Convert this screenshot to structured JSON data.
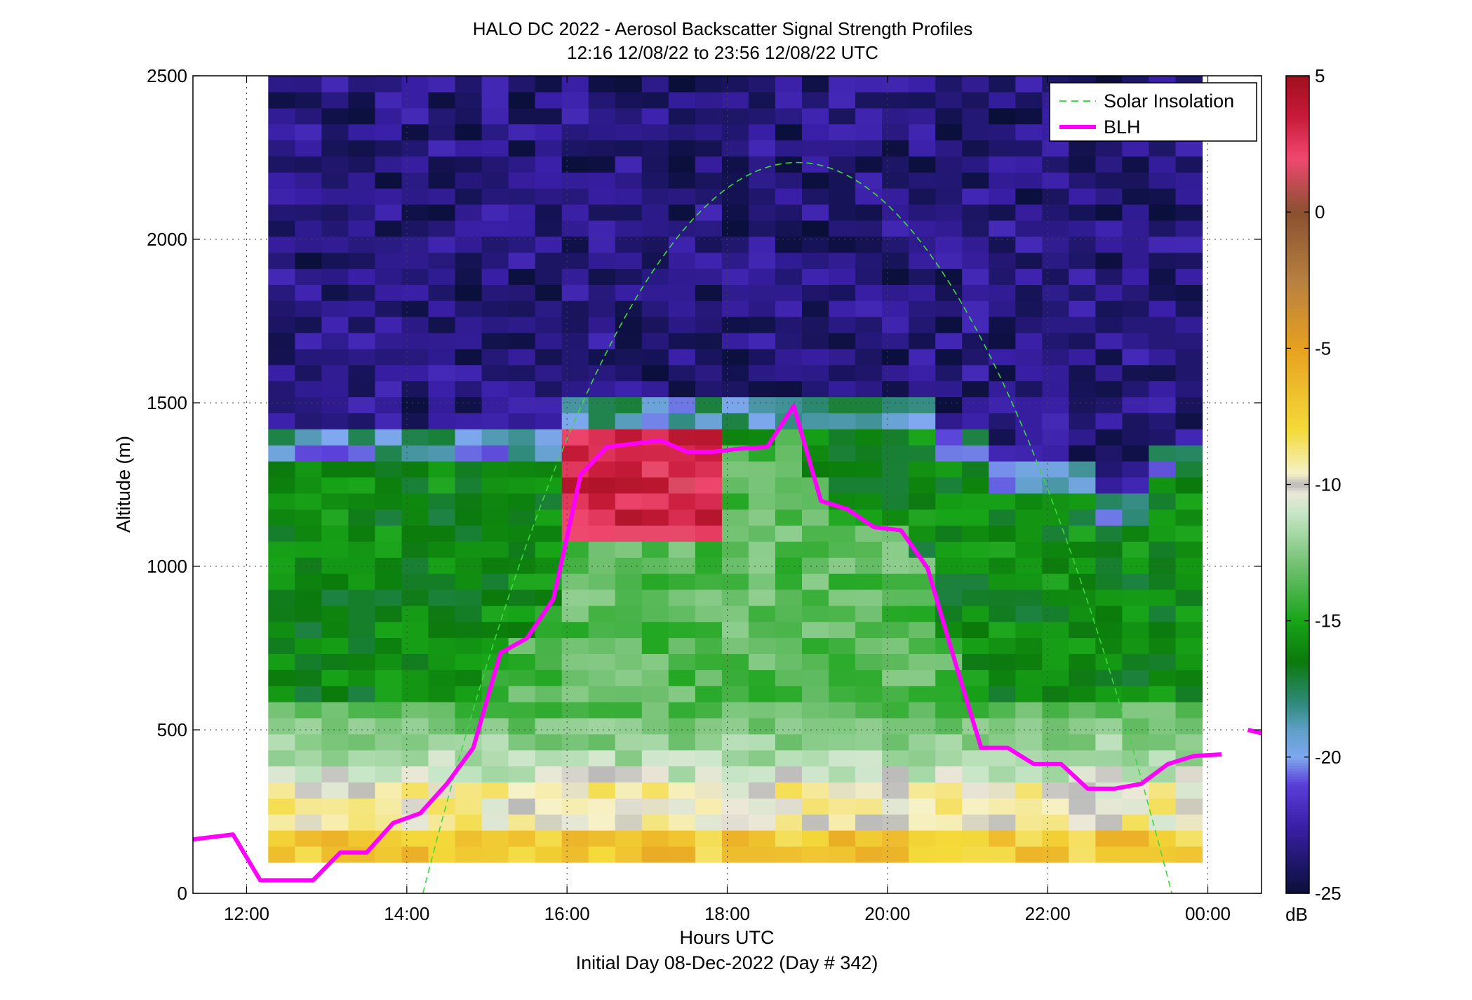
{
  "chart_data": {
    "type": "heatmap",
    "title": "HALO DC 2022 - Aerosol Backscatter Signal Strength Profiles",
    "subtitle": "12:16 12/08/22 to 23:56 12/08/22  UTC",
    "xlabel": "Hours UTC",
    "xlabel2": "Initial Day 08-Dec-2022 (Day # 342)",
    "ylabel": "Altitude (m)",
    "x_unit": "hours UTC (day 0 = 08-Dec-2022)",
    "xlim": [
      11.33,
      24.67
    ],
    "ylim": [
      0,
      2500
    ],
    "x_ticks": [
      {
        "value": 12,
        "label": "12:00"
      },
      {
        "value": 14,
        "label": "14:00"
      },
      {
        "value": 16,
        "label": "16:00"
      },
      {
        "value": 18,
        "label": "18:00"
      },
      {
        "value": 20,
        "label": "20:00"
      },
      {
        "value": 22,
        "label": "22:00"
      },
      {
        "value": 24,
        "label": "00:00"
      }
    ],
    "y_ticks": [
      0,
      500,
      1000,
      1500,
      2000,
      2500
    ],
    "grid": true,
    "legend_position": "top-right",
    "colorbar": {
      "unit": "dB",
      "range": [
        -25,
        5
      ],
      "ticks": [
        5,
        0,
        -5,
        -10,
        -15,
        -20,
        -25
      ],
      "stops": [
        {
          "v": -25,
          "c": "#0a0f3a"
        },
        {
          "v": -22.5,
          "c": "#3a1fa8"
        },
        {
          "v": -21,
          "c": "#5a3fd8"
        },
        {
          "v": -20,
          "c": "#7fa8f0"
        },
        {
          "v": -19,
          "c": "#5fa0c8"
        },
        {
          "v": -18,
          "c": "#2f8a7a"
        },
        {
          "v": -16.5,
          "c": "#0b7a0b"
        },
        {
          "v": -15,
          "c": "#18a418"
        },
        {
          "v": -13,
          "c": "#6fc06f"
        },
        {
          "v": -11,
          "c": "#c8e6c8"
        },
        {
          "v": -10.3,
          "c": "#ece8d8"
        },
        {
          "v": -10,
          "c": "#b8b8b8"
        },
        {
          "v": -9.6,
          "c": "#f6f1c8"
        },
        {
          "v": -8,
          "c": "#f4da3a"
        },
        {
          "v": -5,
          "c": "#e8a020"
        },
        {
          "v": -2.5,
          "c": "#b88040"
        },
        {
          "v": 0,
          "c": "#8a5030"
        },
        {
          "v": 2,
          "c": "#f04870"
        },
        {
          "v": 3.5,
          "c": "#c81a3a"
        },
        {
          "v": 5,
          "c": "#a0101e"
        }
      ]
    },
    "profiles": {
      "x_start": 12.27,
      "x_end": 23.93,
      "alt_start": 95,
      "alt_end": 2500
    },
    "series": [
      {
        "name": "Solar Insolation",
        "style": "dashed",
        "color": "#40d840",
        "peak_time": 18.88,
        "peak_alt": 2235,
        "zero_times": [
          14.2,
          23.55
        ]
      },
      {
        "name": "BLH",
        "style": "solid",
        "color": "#ff00ff",
        "points": [
          [
            11.33,
            165
          ],
          [
            11.83,
            180
          ],
          [
            12.17,
            40
          ],
          [
            12.83,
            40
          ],
          [
            13.17,
            125
          ],
          [
            13.5,
            125
          ],
          [
            13.83,
            215
          ],
          [
            14.17,
            245
          ],
          [
            14.5,
            335
          ],
          [
            14.83,
            445
          ],
          [
            15.17,
            735
          ],
          [
            15.5,
            780
          ],
          [
            15.83,
            900
          ],
          [
            16.17,
            1280
          ],
          [
            16.5,
            1365
          ],
          [
            16.83,
            1375
          ],
          [
            17.17,
            1385
          ],
          [
            17.5,
            1350
          ],
          [
            17.83,
            1350
          ],
          [
            18.17,
            1360
          ],
          [
            18.5,
            1365
          ],
          [
            18.83,
            1490
          ],
          [
            19.17,
            1200
          ],
          [
            19.5,
            1175
          ],
          [
            19.83,
            1120
          ],
          [
            20.17,
            1110
          ],
          [
            20.5,
            995
          ],
          [
            20.83,
            720
          ],
          [
            21.17,
            445
          ],
          [
            21.5,
            445
          ],
          [
            21.83,
            395
          ],
          [
            22.17,
            395
          ],
          [
            22.5,
            320
          ],
          [
            22.83,
            320
          ],
          [
            23.17,
            335
          ],
          [
            23.5,
            395
          ],
          [
            23.83,
            420
          ],
          [
            24.17,
            425
          ]
        ],
        "extra_points": [
          [
            24.5,
            500
          ],
          [
            24.67,
            490
          ]
        ]
      }
    ]
  }
}
